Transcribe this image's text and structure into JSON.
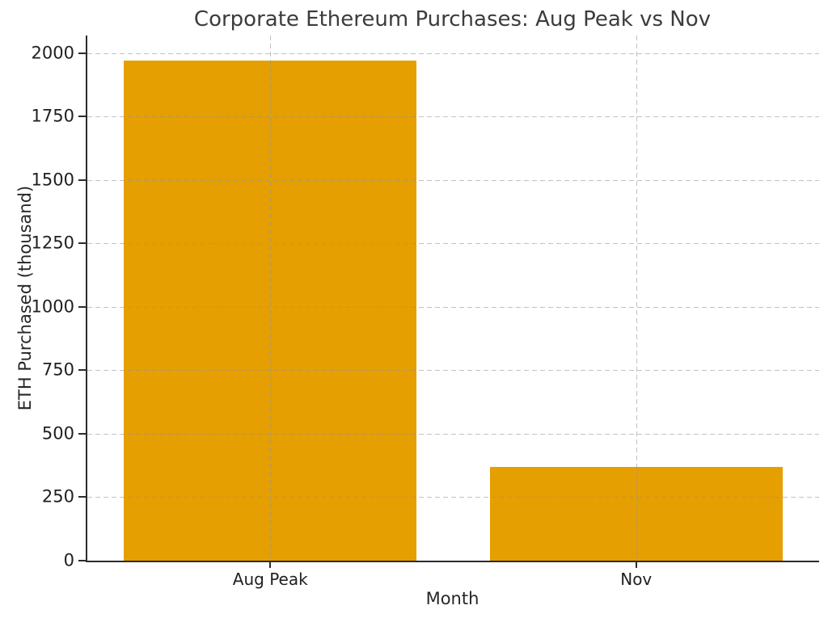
{
  "figure": {
    "background_color": "#ffffff",
    "spine_color": "#2b2b2b",
    "text_color": "#262626"
  },
  "chart_data": {
    "type": "bar",
    "title": "Corporate Ethereum Purchases: Aug Peak vs Nov",
    "categories": [
      "Aug Peak",
      "Nov"
    ],
    "values": [
      1970,
      370
    ],
    "xlabel": "Month",
    "ylabel": "ETH Purchased (thousand)",
    "yticks": [
      0,
      250,
      500,
      750,
      1000,
      1250,
      1500,
      1750,
      2000
    ],
    "ytick_labels": [
      "0",
      "250",
      "500",
      "750",
      "1000",
      "1250",
      "1500",
      "1750",
      "2000"
    ],
    "ylim": [
      0,
      2070
    ],
    "xlim": [
      -0.5,
      1.5
    ],
    "bar_width": 0.8,
    "bar_color": "#E69F00",
    "grid": {
      "visible": true,
      "axis": "both",
      "style": "dashed",
      "color": "#c9c9c9",
      "above_bars": true
    },
    "legend_position": "none"
  }
}
